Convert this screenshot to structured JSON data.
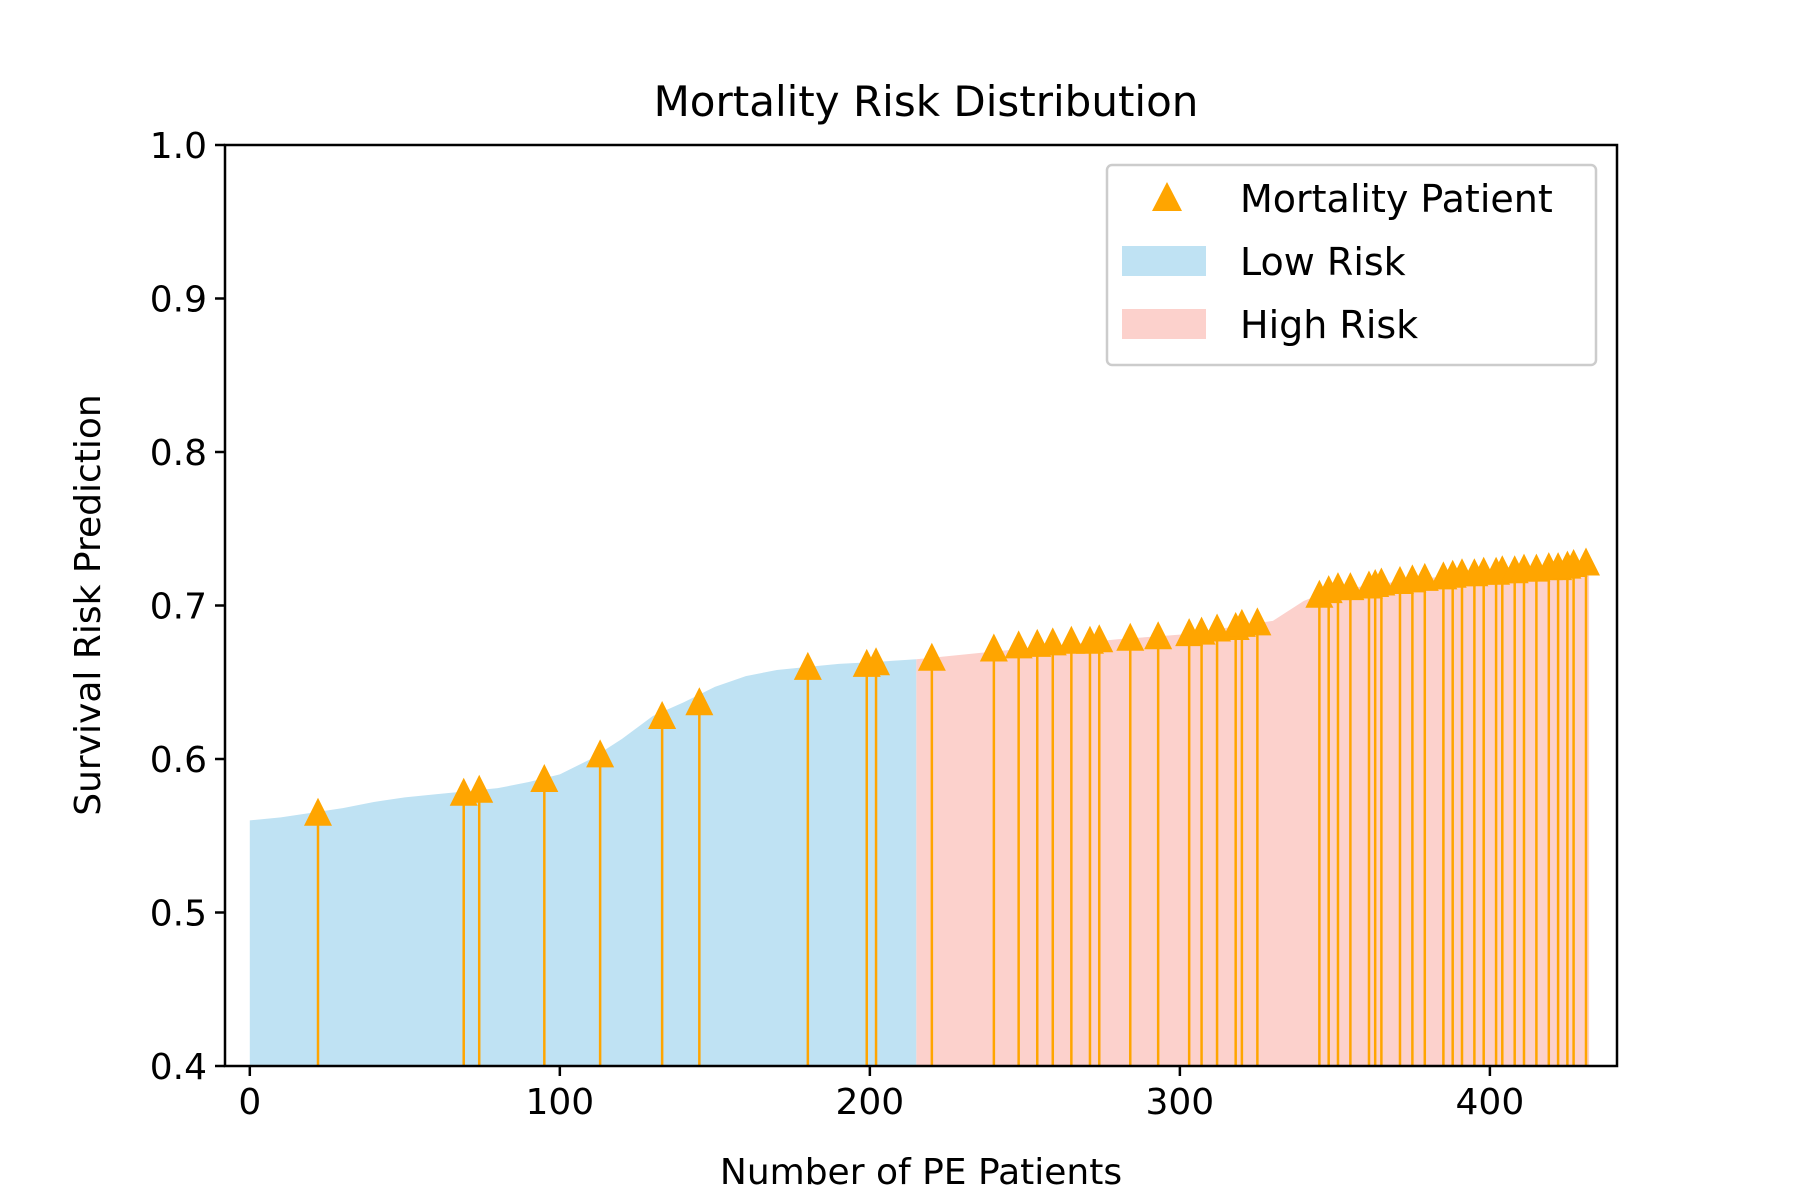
{
  "chart_data": {
    "type": "area",
    "title": "Mortality Risk Distribution",
    "xlabel": "Number of PE Patients",
    "ylabel": "Survival Risk Prediction",
    "xlim": [
      -8,
      441
    ],
    "ylim": [
      0.4,
      1.0
    ],
    "x_ticks": [
      0,
      100,
      200,
      300,
      400
    ],
    "x_tick_labels": [
      "0",
      "100",
      "200",
      "300",
      "400"
    ],
    "y_ticks": [
      0.4,
      0.5,
      0.6,
      0.7,
      0.8,
      0.9,
      1.0
    ],
    "y_tick_labels": [
      "0.4",
      "0.5",
      "0.6",
      "0.7",
      "0.8",
      "0.9",
      "1.0"
    ],
    "grid": false,
    "legend_position": "top-right",
    "legend": [
      {
        "label": "Mortality Patient",
        "marker": "triangle",
        "color": "#FFA500"
      },
      {
        "label": "Low Risk",
        "marker": "patch",
        "color": "#BFE2F3"
      },
      {
        "label": "High Risk",
        "marker": "patch",
        "color": "#FCD1CC"
      }
    ],
    "risk_split_x": 215,
    "series": [
      {
        "name": "Low Risk",
        "color": "#BFE2F3",
        "x": [
          0,
          10,
          20,
          30,
          40,
          50,
          60,
          70,
          80,
          90,
          100,
          110,
          120,
          130,
          140,
          150,
          160,
          170,
          180,
          190,
          200,
          215
        ],
        "y": [
          0.56,
          0.562,
          0.565,
          0.568,
          0.572,
          0.575,
          0.577,
          0.579,
          0.581,
          0.585,
          0.59,
          0.6,
          0.613,
          0.628,
          0.637,
          0.647,
          0.654,
          0.658,
          0.66,
          0.662,
          0.663,
          0.665
        ]
      },
      {
        "name": "High Risk",
        "color": "#FCD1CC",
        "x": [
          215,
          220,
          240,
          260,
          280,
          300,
          320,
          330,
          340,
          345,
          360,
          380,
          400,
          420,
          432
        ],
        "y": [
          0.665,
          0.666,
          0.67,
          0.674,
          0.678,
          0.681,
          0.687,
          0.69,
          0.703,
          0.707,
          0.713,
          0.718,
          0.721,
          0.724,
          0.73
        ]
      },
      {
        "name": "Mortality Patient",
        "color": "#FFA500",
        "x": [
          22,
          69,
          74,
          95,
          113,
          133,
          145,
          180,
          199,
          202,
          220,
          240,
          248,
          254,
          259,
          265,
          271,
          274,
          284,
          293,
          303,
          307,
          312,
          318,
          320,
          325,
          345,
          348,
          351,
          355,
          361,
          363,
          365,
          371,
          375,
          379,
          385,
          388,
          391,
          395,
          398,
          402,
          404,
          408,
          411,
          415,
          419,
          422,
          425,
          427,
          431
        ],
        "y": [
          0.565,
          0.578,
          0.58,
          0.587,
          0.603,
          0.628,
          0.637,
          0.66,
          0.662,
          0.663,
          0.666,
          0.672,
          0.674,
          0.675,
          0.676,
          0.677,
          0.677,
          0.678,
          0.679,
          0.68,
          0.682,
          0.683,
          0.685,
          0.686,
          0.688,
          0.689,
          0.707,
          0.71,
          0.712,
          0.712,
          0.713,
          0.714,
          0.715,
          0.716,
          0.717,
          0.718,
          0.719,
          0.72,
          0.721,
          0.721,
          0.722,
          0.722,
          0.723,
          0.723,
          0.724,
          0.724,
          0.725,
          0.725,
          0.726,
          0.727,
          0.728
        ]
      }
    ]
  }
}
